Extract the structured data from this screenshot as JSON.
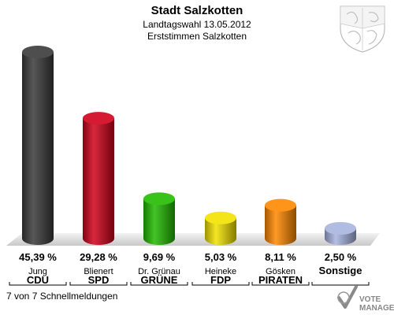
{
  "chart_data": {
    "type": "bar",
    "title": "Stadt Salzkotten",
    "subtitle": "Landtagswahl 13.05.2012",
    "subtitle2": "Erststimmen Salzkotten",
    "categories": [
      "CDU",
      "SPD",
      "GRÜNE",
      "FDP",
      "PIRATEN",
      "Sonstige"
    ],
    "candidates": [
      "Jung",
      "Blienert",
      "Dr. Grünau",
      "Heineke",
      "Gösken",
      ""
    ],
    "values": [
      45.39,
      29.28,
      9.69,
      5.03,
      8.11,
      2.5
    ],
    "labels": [
      "45,39 %",
      "29,28 %",
      "9,69 %",
      "5,03 %",
      "8,11 %",
      "2,50 %"
    ],
    "colors": [
      "#3a3a3a",
      "#d0021b",
      "#22bb00",
      "#f2e200",
      "#ff8800",
      "#a8b4e0"
    ],
    "ylim": [
      0,
      45.39
    ],
    "grid": false
  },
  "footer": "7 von 7 Schnellmeldungen",
  "brand": {
    "line1": "VOTE",
    "line2": "MANAGER"
  }
}
